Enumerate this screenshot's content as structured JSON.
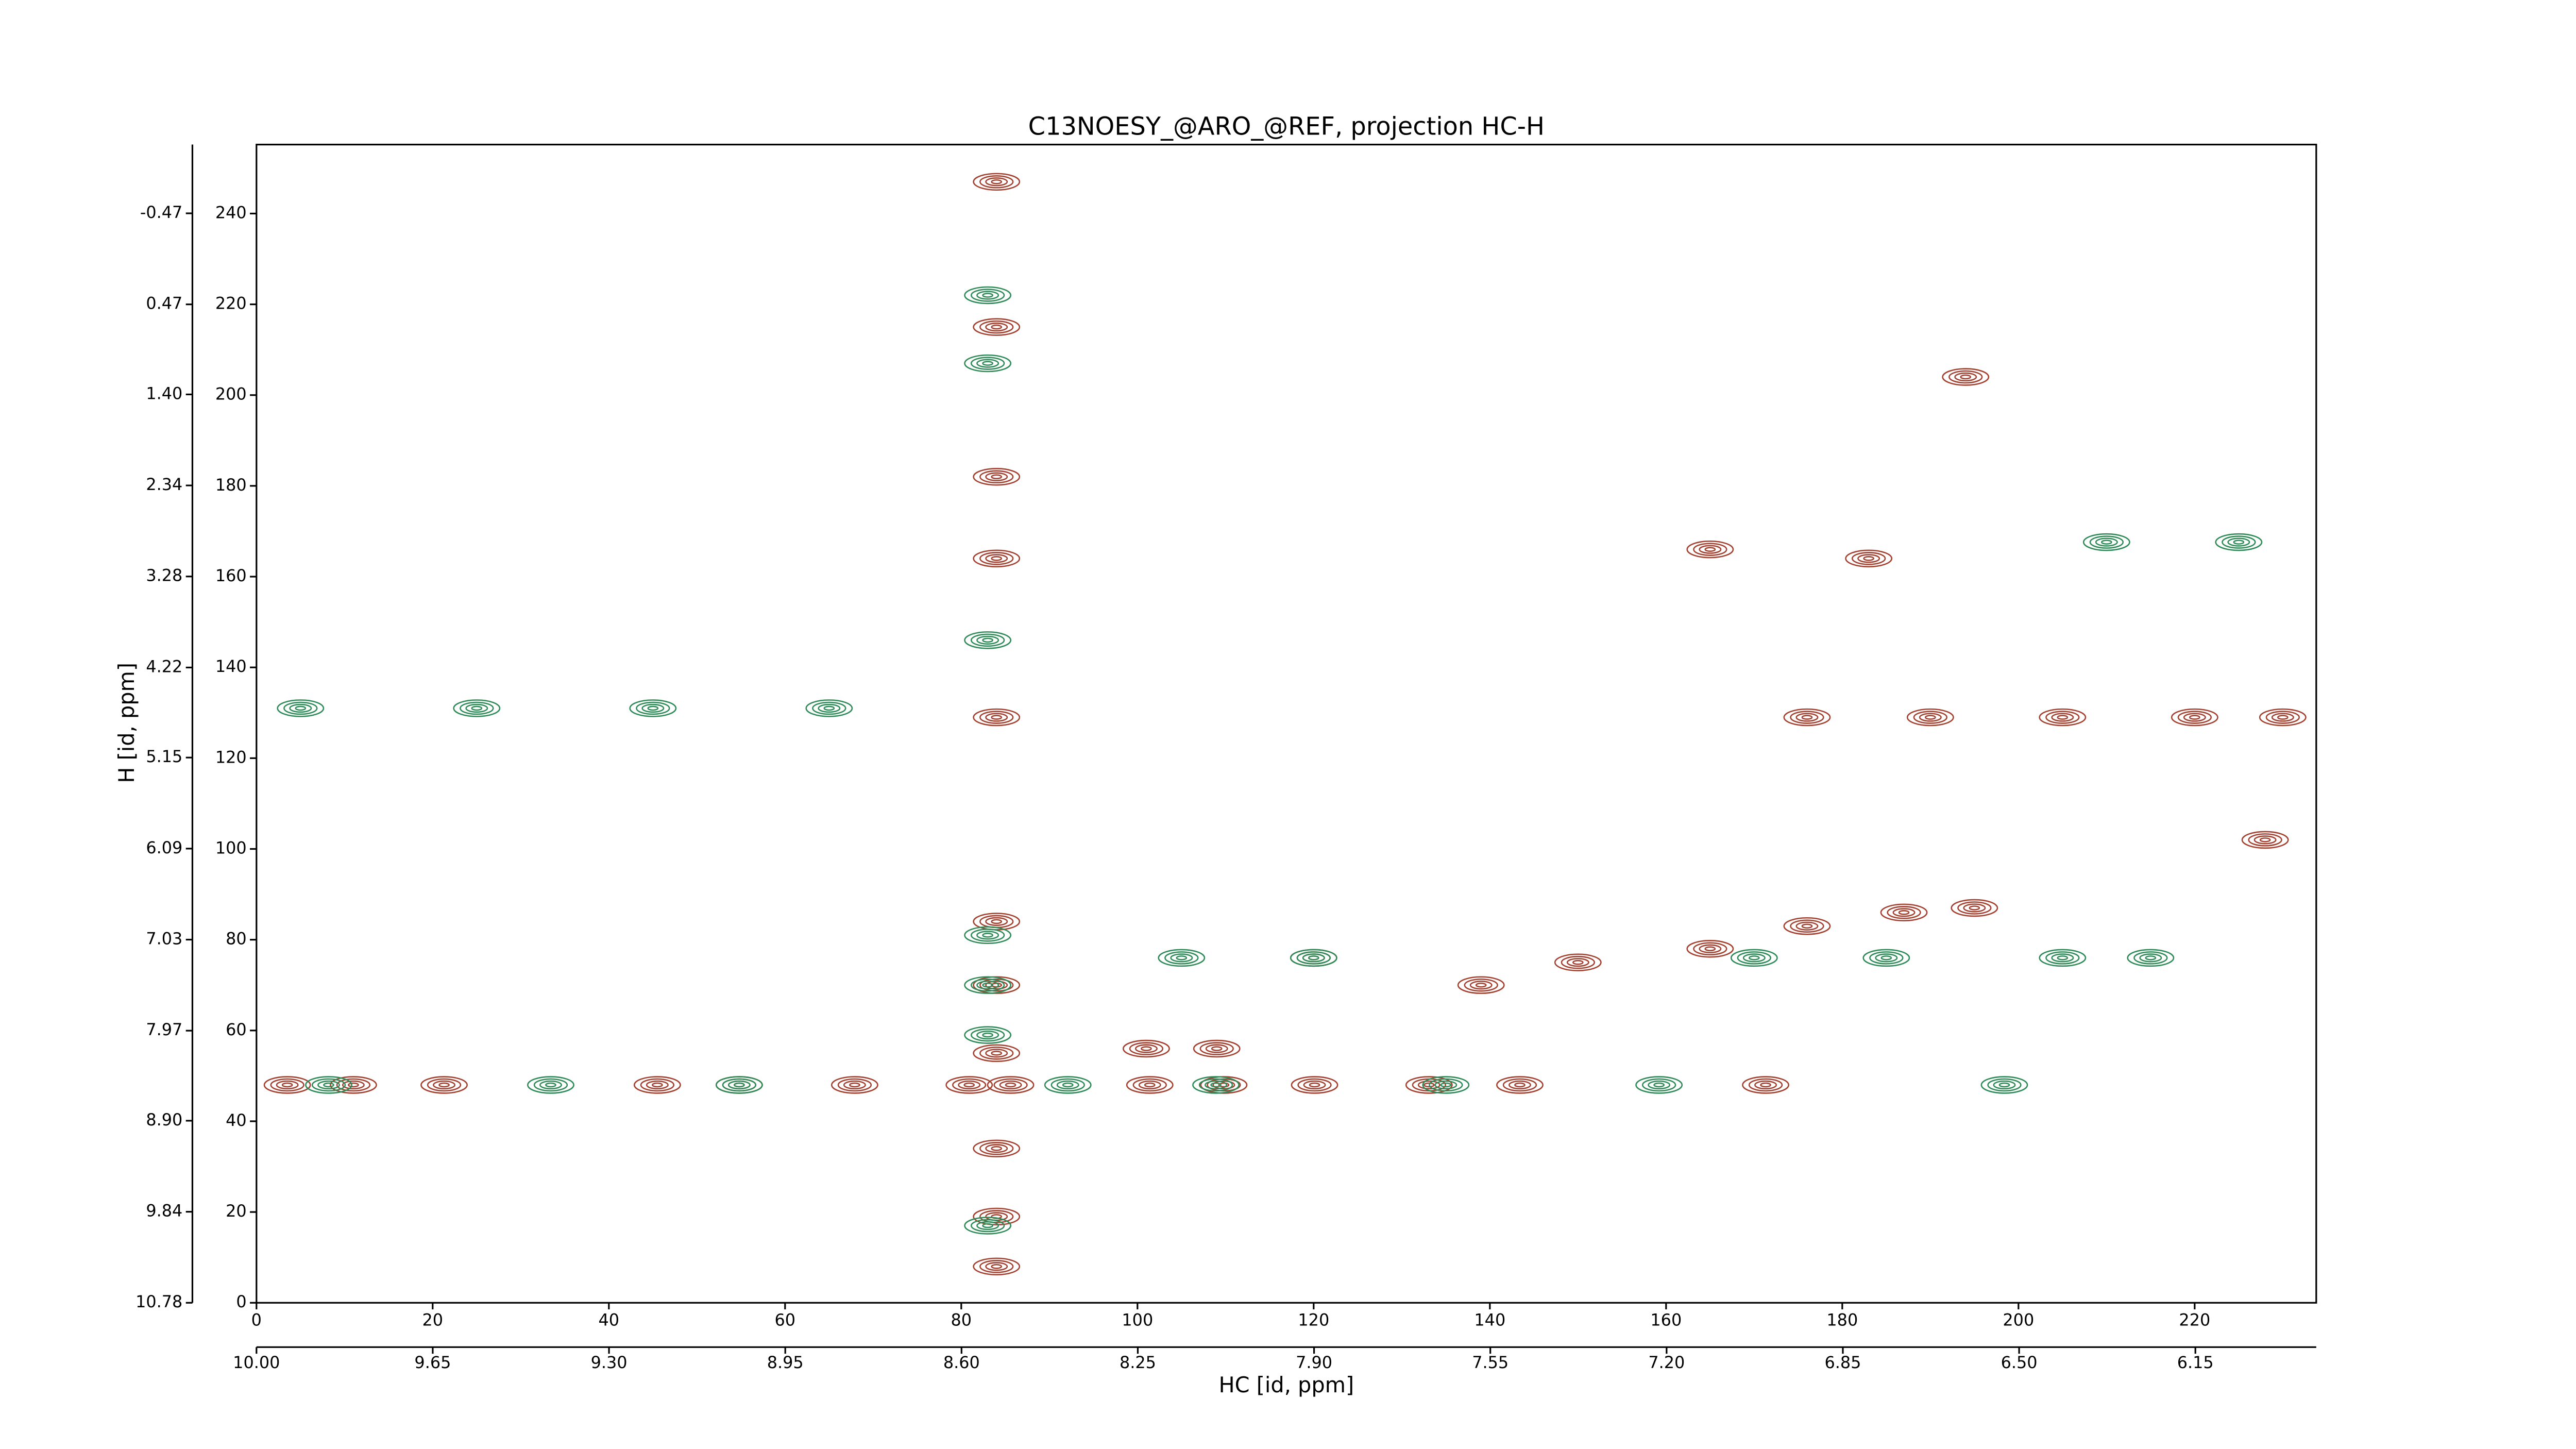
{
  "chart_data": {
    "type": "contour",
    "title": "C13NOESY_@ARO_@REF, projection HC-H",
    "x_label": "HC [id, ppm]",
    "y_label": "H [id, ppm]",
    "xlim": [
      0,
      233.8
    ],
    "xticks": [
      0,
      20,
      40,
      60,
      80,
      100,
      120,
      140,
      160,
      180,
      200,
      220
    ],
    "x2lim": [
      10.0,
      5.91
    ],
    "x2ticks": [
      {
        "value": 10.0,
        "label": "10.00"
      },
      9.65,
      {
        "value": 9.3,
        "label": "9.30"
      },
      8.95,
      {
        "value": 8.6,
        "label": "8.60"
      },
      8.25,
      {
        "value": 7.9,
        "label": "7.90"
      },
      7.55,
      {
        "value": 7.2,
        "label": "7.20"
      },
      6.85,
      {
        "value": 6.5,
        "label": "6.50"
      },
      6.15
    ],
    "ylim": [
      0,
      255.2
    ],
    "yticks": [
      0,
      20,
      40,
      60,
      80,
      100,
      120,
      140,
      160,
      180,
      200,
      220,
      240
    ],
    "y2lim": [
      10.78,
      -1.18
    ],
    "y2ticks": [
      10.78,
      9.84,
      {
        "value": 8.9,
        "label": "8.90"
      },
      7.97,
      7.03,
      6.09,
      5.15,
      4.22,
      3.28,
      2.34,
      {
        "value": 1.4,
        "label": "1.40"
      },
      0.47,
      -0.47
    ],
    "series": [
      {
        "color": "#a3402f",
        "x": [
          3.5,
          11,
          21.3,
          45.5,
          54.8,
          67.9,
          80.9,
          85.6,
          101.4,
          109.8,
          120.1,
          133.1,
          143.4,
          171.3,
          84,
          84,
          84,
          84,
          84,
          84,
          84,
          84,
          84,
          84,
          84,
          176,
          190,
          205,
          220,
          230,
          120,
          139,
          150,
          165,
          176,
          187,
          195,
          228,
          194,
          183,
          165,
          101,
          109
        ],
        "y": [
          48,
          48,
          48,
          48,
          48,
          48,
          48,
          48,
          48,
          48,
          48,
          48,
          48,
          48,
          247,
          215,
          182,
          164,
          129,
          84,
          70,
          55,
          34,
          19,
          8,
          129,
          129,
          129,
          129,
          129,
          76,
          70,
          75,
          78,
          83,
          86,
          87,
          102,
          204,
          164,
          166,
          56,
          56
        ]
      },
      {
        "color": "#2e8b57",
        "x": [
          8.2,
          33.4,
          54.8,
          92.1,
          108.9,
          135,
          159.2,
          198.4,
          5,
          25,
          45,
          65,
          105,
          120,
          170,
          185,
          205,
          215,
          83,
          83,
          83,
          83,
          83,
          83,
          83,
          210,
          225
        ],
        "y": [
          48,
          48,
          48,
          48,
          48,
          48,
          48,
          48,
          131,
          131,
          131,
          131,
          76,
          76,
          76,
          76,
          76,
          76,
          222,
          207,
          146,
          81,
          70,
          59,
          17,
          167.6,
          167.6
        ]
      }
    ]
  }
}
